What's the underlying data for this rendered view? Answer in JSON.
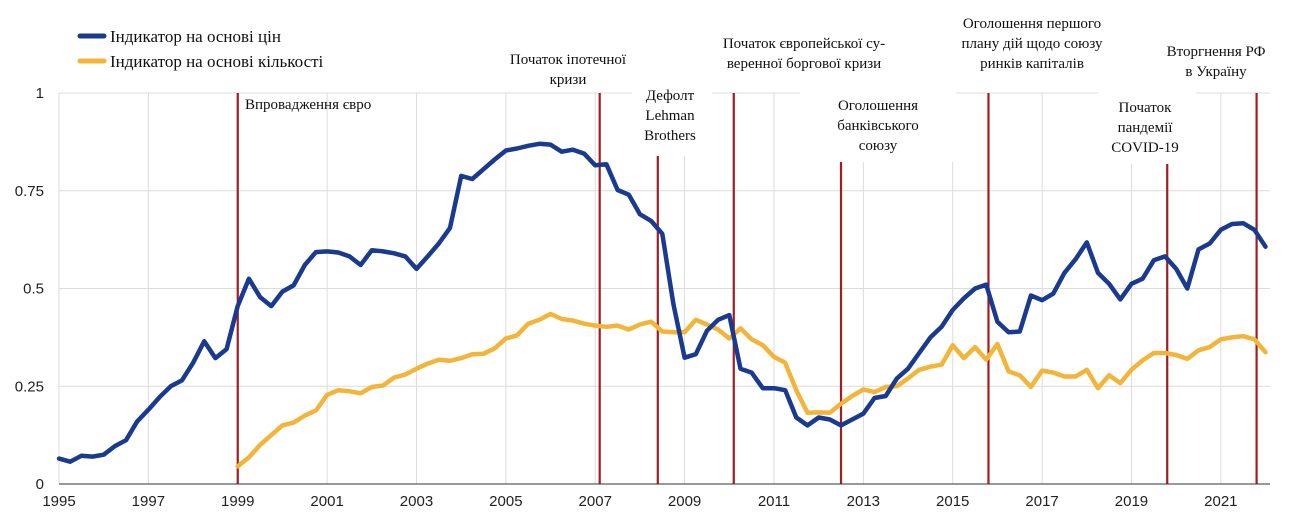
{
  "chart_data": {
    "type": "line",
    "xlim": [
      1995,
      2022.1
    ],
    "ylim": [
      0,
      1
    ],
    "x_ticks": [
      "1995",
      "1997",
      "1999",
      "2001",
      "2003",
      "2005",
      "2007",
      "2009",
      "2011",
      "2013",
      "2015",
      "2017",
      "2019",
      "2021"
    ],
    "y_ticks": [
      "0",
      "0.25",
      "0.5",
      "0.75",
      "1"
    ],
    "grid": true,
    "legend_position": "top-left",
    "series": [
      {
        "name": "Індикатор на основі цін",
        "color": "#1a3a8f",
        "x": [
          1995.0,
          1995.25,
          1995.5,
          1995.75,
          1996.0,
          1996.25,
          1996.5,
          1996.75,
          1997.0,
          1997.25,
          1997.5,
          1997.75,
          1998.0,
          1998.25,
          1998.5,
          1998.75,
          1999.0,
          1999.25,
          1999.5,
          1999.75,
          2000.0,
          2000.25,
          2000.5,
          2000.75,
          2001.0,
          2001.25,
          2001.5,
          2001.75,
          2002.0,
          2002.25,
          2002.5,
          2002.75,
          2003.0,
          2003.25,
          2003.5,
          2003.75,
          2004.0,
          2004.25,
          2004.5,
          2004.75,
          2005.0,
          2005.25,
          2005.5,
          2005.75,
          2006.0,
          2006.25,
          2006.5,
          2006.75,
          2007.0,
          2007.25,
          2007.5,
          2007.75,
          2008.0,
          2008.25,
          2008.5,
          2008.75,
          2009.0,
          2009.25,
          2009.5,
          2009.75,
          2010.0,
          2010.25,
          2010.5,
          2010.75,
          2011.0,
          2011.25,
          2011.5,
          2011.75,
          2012.0,
          2012.25,
          2012.5,
          2012.75,
          2013.0,
          2013.25,
          2013.5,
          2013.75,
          2014.0,
          2014.25,
          2014.5,
          2014.75,
          2015.0,
          2015.25,
          2015.5,
          2015.75,
          2016.0,
          2016.25,
          2016.5,
          2016.75,
          2017.0,
          2017.25,
          2017.5,
          2017.75,
          2018.0,
          2018.25,
          2018.5,
          2018.75,
          2019.0,
          2019.25,
          2019.5,
          2019.75,
          2020.0,
          2020.25,
          2020.5,
          2020.75,
          2021.0,
          2021.25,
          2021.5,
          2021.75,
          2022.0
        ],
        "values": [
          0.065,
          0.057,
          0.072,
          0.07,
          0.075,
          0.097,
          0.112,
          0.16,
          0.19,
          0.222,
          0.25,
          0.265,
          0.31,
          0.365,
          0.322,
          0.345,
          0.455,
          0.525,
          0.478,
          0.455,
          0.492,
          0.508,
          0.56,
          0.593,
          0.595,
          0.592,
          0.582,
          0.56,
          0.598,
          0.595,
          0.59,
          0.582,
          0.55,
          0.582,
          0.615,
          0.655,
          0.788,
          0.78,
          0.805,
          0.83,
          0.853,
          0.858,
          0.865,
          0.87,
          0.868,
          0.85,
          0.855,
          0.845,
          0.815,
          0.818,
          0.752,
          0.74,
          0.69,
          0.673,
          0.64,
          0.46,
          0.323,
          0.332,
          0.392,
          0.42,
          0.432,
          0.295,
          0.285,
          0.245,
          0.245,
          0.24,
          0.17,
          0.15,
          0.17,
          0.165,
          0.15,
          0.165,
          0.18,
          0.22,
          0.225,
          0.27,
          0.295,
          0.335,
          0.375,
          0.402,
          0.445,
          0.475,
          0.5,
          0.51,
          0.415,
          0.388,
          0.39,
          0.482,
          0.47,
          0.487,
          0.54,
          0.575,
          0.618,
          0.54,
          0.512,
          0.472,
          0.512,
          0.525,
          0.572,
          0.582,
          0.55,
          0.5,
          0.6,
          0.615,
          0.65,
          0.665,
          0.667,
          0.65,
          0.607
        ]
      },
      {
        "name": "Індикатор на основі кількості",
        "color": "#f2b53a",
        "x": [
          1999.0,
          1999.25,
          1999.5,
          1999.75,
          2000.0,
          2000.25,
          2000.5,
          2000.75,
          2001.0,
          2001.25,
          2001.5,
          2001.75,
          2002.0,
          2002.25,
          2002.5,
          2002.75,
          2003.0,
          2003.25,
          2003.5,
          2003.75,
          2004.0,
          2004.25,
          2004.5,
          2004.75,
          2005.0,
          2005.25,
          2005.5,
          2005.75,
          2006.0,
          2006.25,
          2006.5,
          2006.75,
          2007.0,
          2007.25,
          2007.5,
          2007.75,
          2008.0,
          2008.25,
          2008.5,
          2008.75,
          2009.0,
          2009.25,
          2009.5,
          2009.75,
          2010.0,
          2010.25,
          2010.5,
          2010.75,
          2011.0,
          2011.25,
          2011.5,
          2011.75,
          2012.0,
          2012.25,
          2012.5,
          2012.75,
          2013.0,
          2013.25,
          2013.5,
          2013.75,
          2014.0,
          2014.25,
          2014.5,
          2014.75,
          2015.0,
          2015.25,
          2015.5,
          2015.75,
          2016.0,
          2016.25,
          2016.5,
          2016.75,
          2017.0,
          2017.25,
          2017.5,
          2017.75,
          2018.0,
          2018.25,
          2018.5,
          2018.75,
          2019.0,
          2019.25,
          2019.5,
          2019.75,
          2020.0,
          2020.25,
          2020.5,
          2020.75,
          2021.0,
          2021.25,
          2021.5,
          2021.75,
          2022.0
        ],
        "values": [
          0.045,
          0.068,
          0.1,
          0.125,
          0.15,
          0.157,
          0.175,
          0.188,
          0.228,
          0.24,
          0.237,
          0.232,
          0.248,
          0.252,
          0.272,
          0.28,
          0.295,
          0.308,
          0.318,
          0.315,
          0.322,
          0.332,
          0.333,
          0.347,
          0.372,
          0.38,
          0.41,
          0.42,
          0.435,
          0.422,
          0.418,
          0.41,
          0.405,
          0.402,
          0.405,
          0.395,
          0.408,
          0.415,
          0.39,
          0.388,
          0.388,
          0.42,
          0.408,
          0.395,
          0.372,
          0.398,
          0.37,
          0.355,
          0.325,
          0.31,
          0.24,
          0.182,
          0.183,
          0.182,
          0.205,
          0.225,
          0.242,
          0.235,
          0.248,
          0.25,
          0.27,
          0.292,
          0.3,
          0.305,
          0.355,
          0.322,
          0.35,
          0.318,
          0.358,
          0.288,
          0.278,
          0.248,
          0.29,
          0.285,
          0.275,
          0.275,
          0.292,
          0.245,
          0.278,
          0.258,
          0.292,
          0.316,
          0.335,
          0.335,
          0.33,
          0.32,
          0.342,
          0.35,
          0.37,
          0.375,
          0.378,
          0.37,
          0.337
        ]
      }
    ],
    "events": [
      {
        "x": 1999.0,
        "label_lines": [
          "Впровадження євро"
        ],
        "anchor": "start"
      },
      {
        "x": 2007.1,
        "label_lines": [
          "Початок іпотечної",
          "кризи"
        ],
        "anchor": "middle"
      },
      {
        "x": 2008.4,
        "label_lines": [
          "Дефолт",
          "Lehman",
          "Brothers"
        ],
        "anchor": "middle"
      },
      {
        "x": 2010.1,
        "label_lines": [
          "Початок європейської су-",
          "веренної боргової кризи"
        ],
        "anchor": "middle"
      },
      {
        "x": 2012.5,
        "label_lines": [
          "Оголошення",
          "банківського",
          "союзу"
        ],
        "anchor": "middle"
      },
      {
        "x": 2015.8,
        "label_lines": [
          "Оголошення першого",
          "плану дій щодо союзу",
          "ринків капіталів"
        ],
        "anchor": "middle"
      },
      {
        "x": 2019.8,
        "label_lines": [
          "Початок",
          "пандемії",
          "COVID-19"
        ],
        "anchor": "middle"
      },
      {
        "x": 2021.8,
        "label_lines": [
          "Вторгнення РФ",
          "в Україну"
        ],
        "anchor": "middle"
      }
    ]
  }
}
